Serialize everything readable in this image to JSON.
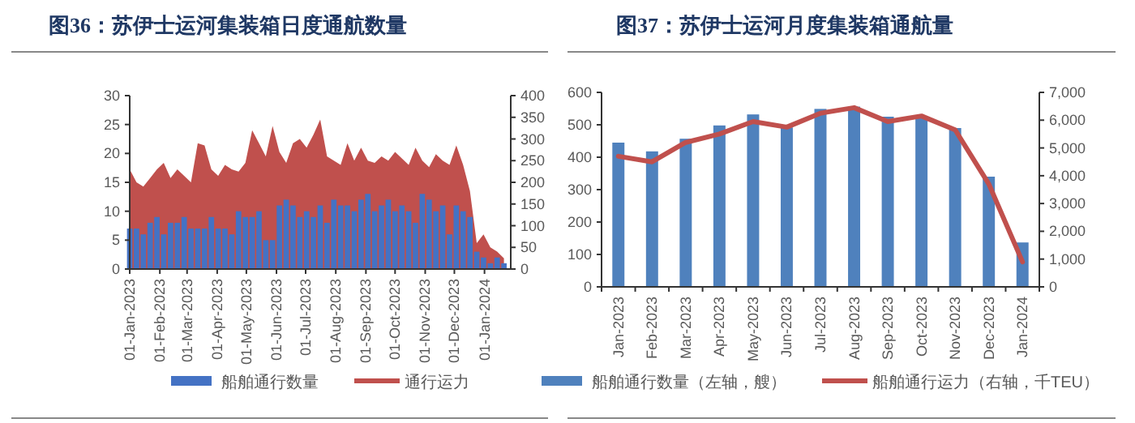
{
  "chart_data": [
    {
      "type": "bar",
      "title": "图36：苏伊士运河集装箱日度通航数量",
      "xlim": [
        "2023-01-01",
        "2024-01-28"
      ],
      "xticks": [
        {
          "value": "2023-01-01",
          "label": "01-Jan-2023"
        },
        {
          "value": "2023-02-01",
          "label": "01-Feb-2023"
        },
        {
          "value": "2023-03-01",
          "label": "01-Mar-2023"
        },
        {
          "value": "2023-04-01",
          "label": "01-Apr-2023"
        },
        {
          "value": "2023-05-01",
          "label": "01-May-2023"
        },
        {
          "value": "2023-06-01",
          "label": "01-Jun-2023"
        },
        {
          "value": "2023-07-01",
          "label": "01-Jul-2023"
        },
        {
          "value": "2023-08-01",
          "label": "01-Aug-2023"
        },
        {
          "value": "2023-09-01",
          "label": "01-Sep-2023"
        },
        {
          "value": "2023-10-01",
          "label": "01-Oct-2023"
        },
        {
          "value": "2023-11-01",
          "label": "01-Nov-2023"
        },
        {
          "value": "2023-12-01",
          "label": "01-Dec-2023"
        },
        {
          "value": "2024-01-01",
          "label": "01-Jan-2024"
        }
      ],
      "ylim": [
        0,
        30
      ],
      "yticks": [
        0,
        5,
        10,
        15,
        20,
        25,
        30
      ],
      "y2lim": [
        0,
        400
      ],
      "y2ticks": [
        0,
        50,
        100,
        150,
        200,
        250,
        300,
        350,
        400
      ],
      "legend": "bottom",
      "grid": false,
      "series": [
        {
          "name": "船舶通行数量",
          "color": "#4472c4",
          "x": [
            "2023-01-01",
            "2023-01-08",
            "2023-01-15",
            "2023-01-22",
            "2023-01-29",
            "2023-02-05",
            "2023-02-12",
            "2023-02-19",
            "2023-02-26",
            "2023-03-05",
            "2023-03-12",
            "2023-03-19",
            "2023-03-26",
            "2023-04-02",
            "2023-04-09",
            "2023-04-16",
            "2023-04-23",
            "2023-04-30",
            "2023-05-07",
            "2023-05-14",
            "2023-05-21",
            "2023-05-28",
            "2023-06-04",
            "2023-06-11",
            "2023-06-18",
            "2023-06-25",
            "2023-07-02",
            "2023-07-09",
            "2023-07-16",
            "2023-07-23",
            "2023-07-30",
            "2023-08-06",
            "2023-08-13",
            "2023-08-20",
            "2023-08-27",
            "2023-09-03",
            "2023-09-10",
            "2023-09-17",
            "2023-09-24",
            "2023-10-01",
            "2023-10-08",
            "2023-10-15",
            "2023-10-22",
            "2023-10-29",
            "2023-11-05",
            "2023-11-12",
            "2023-11-19",
            "2023-11-26",
            "2023-12-03",
            "2023-12-10",
            "2023-12-17",
            "2023-12-24",
            "2023-12-31",
            "2024-01-07",
            "2024-01-14",
            "2024-01-21"
          ],
          "values": [
            7,
            7,
            6,
            8,
            9,
            6,
            8,
            8,
            9,
            7,
            7,
            7,
            9,
            7,
            7,
            6,
            10,
            9,
            9,
            10,
            5,
            5,
            11,
            12,
            11,
            9,
            10,
            9,
            11,
            8,
            12,
            11,
            11,
            10,
            12,
            13,
            10,
            11,
            12,
            10,
            11,
            10,
            8,
            13,
            12,
            10,
            11,
            6,
            11,
            10,
            9,
            3,
            2,
            1,
            2,
            1
          ]
        },
        {
          "name": "通行运力",
          "type": "area",
          "axis": "y2",
          "color": "#c0504d",
          "x": [
            "2023-01-01",
            "2023-01-08",
            "2023-01-15",
            "2023-01-22",
            "2023-01-29",
            "2023-02-05",
            "2023-02-12",
            "2023-02-19",
            "2023-02-26",
            "2023-03-05",
            "2023-03-12",
            "2023-03-19",
            "2023-03-26",
            "2023-04-02",
            "2023-04-09",
            "2023-04-16",
            "2023-04-23",
            "2023-04-30",
            "2023-05-07",
            "2023-05-14",
            "2023-05-21",
            "2023-05-28",
            "2023-06-04",
            "2023-06-11",
            "2023-06-18",
            "2023-06-25",
            "2023-07-02",
            "2023-07-09",
            "2023-07-16",
            "2023-07-23",
            "2023-07-30",
            "2023-08-06",
            "2023-08-13",
            "2023-08-20",
            "2023-08-27",
            "2023-09-03",
            "2023-09-10",
            "2023-09-17",
            "2023-09-24",
            "2023-10-01",
            "2023-10-08",
            "2023-10-15",
            "2023-10-22",
            "2023-10-29",
            "2023-11-05",
            "2023-11-12",
            "2023-11-19",
            "2023-11-26",
            "2023-12-03",
            "2023-12-10",
            "2023-12-17",
            "2023-12-24",
            "2023-12-31",
            "2024-01-07",
            "2024-01-14",
            "2024-01-21"
          ],
          "values": [
            230,
            200,
            190,
            210,
            230,
            245,
            210,
            230,
            215,
            200,
            290,
            285,
            230,
            215,
            240,
            230,
            225,
            245,
            320,
            290,
            260,
            330,
            270,
            245,
            290,
            300,
            280,
            310,
            345,
            260,
            250,
            240,
            290,
            250,
            280,
            250,
            245,
            260,
            250,
            270,
            255,
            240,
            280,
            250,
            235,
            265,
            250,
            240,
            285,
            240,
            180,
            60,
            80,
            50,
            40,
            25
          ]
        }
      ]
    },
    {
      "type": "bar",
      "title": "图37：苏伊士运河月度集装箱通航量",
      "categories": [
        "Jan-2023",
        "Feb-2023",
        "Mar-2023",
        "Apr-2023",
        "May-2023",
        "Jun-2023",
        "Jul-2023",
        "Aug-2023",
        "Sep-2023",
        "Oct-2023",
        "Nov-2023",
        "Dec-2023",
        "Jan-2024"
      ],
      "ylim": [
        0,
        600
      ],
      "yticks": [
        0,
        100,
        200,
        300,
        400,
        500,
        600
      ],
      "y2lim": [
        0,
        7000
      ],
      "y2ticks": [
        0,
        {
          "value": 1000,
          "label": "1,000"
        },
        {
          "value": 2000,
          "label": "2,000"
        },
        {
          "value": 3000,
          "label": "3,000"
        },
        {
          "value": 4000,
          "label": "4,000"
        },
        {
          "value": 5000,
          "label": "5,000"
        },
        {
          "value": 6000,
          "label": "6,000"
        },
        {
          "value": 7000,
          "label": "7,000"
        }
      ],
      "legend": "bottom",
      "grid": false,
      "series": [
        {
          "name": "船舶通行数量（左轴，艘）",
          "color": "#4f81bd",
          "values": [
            445,
            418,
            457,
            498,
            532,
            492,
            549,
            556,
            525,
            525,
            490,
            340,
            137
          ]
        },
        {
          "name": "船舶通行运力（右轴，千TEU）",
          "type": "line",
          "axis": "y2",
          "color": "#c0504d",
          "values": [
            4700,
            4500,
            5200,
            5500,
            5950,
            5750,
            6250,
            6450,
            5950,
            6150,
            5650,
            3700,
            900
          ]
        }
      ]
    }
  ]
}
